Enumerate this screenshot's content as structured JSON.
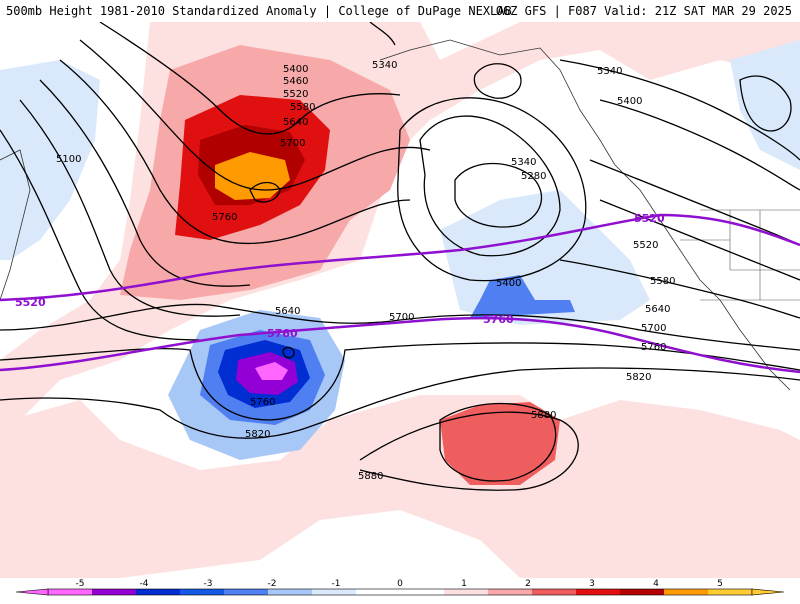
{
  "header": {
    "title_left": "500mb Height 1981-2010 Standardized Anomaly | College of DuPage NEXLAB",
    "title_right": "06Z GFS | F087 Valid: 21Z SAT MAR 29 2025"
  },
  "map": {
    "contour_color": "#000000",
    "highlight_color": "#9010d0",
    "highlight_labels": [
      "5520",
      "5760",
      "5520",
      "5760"
    ],
    "contour_labels": [
      "5340",
      "5400",
      "5460",
      "5520",
      "5580",
      "5640",
      "5700",
      "5760",
      "5100",
      "5340",
      "5400",
      "5340",
      "5280",
      "5400",
      "5520",
      "5580",
      "5640",
      "5700",
      "5760",
      "5820",
      "5640",
      "5700",
      "5760",
      "5820",
      "5880",
      "5880"
    ]
  },
  "colorbar": {
    "ticks": [
      "-5",
      "-4",
      "-3",
      "-2",
      "-1",
      "0",
      "1",
      "2",
      "3",
      "4",
      "5"
    ],
    "colors": [
      "#ff66ff",
      "#9300d6",
      "#002ed2",
      "#1458e6",
      "#4f7ff0",
      "#a7c7f6",
      "#d9e9fb",
      "#ffffff",
      "#ffffff",
      "#fde0e0",
      "#f7a8a8",
      "#ef5e5e",
      "#e01010",
      "#b00000",
      "#ff9a00",
      "#ffcc33"
    ],
    "icons": [
      "colorbar-arrow-left-icon",
      "colorbar-arrow-right-icon"
    ]
  }
}
